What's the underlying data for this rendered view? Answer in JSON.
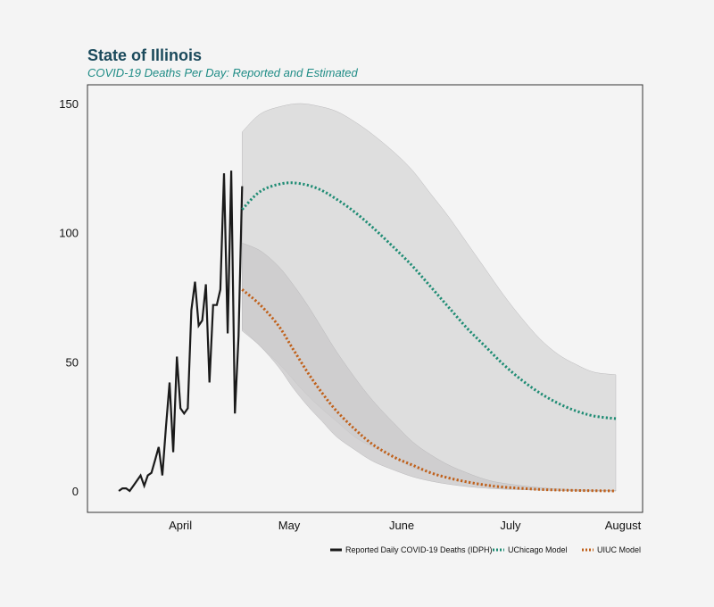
{
  "chart_data": {
    "type": "line",
    "title": "State of Illinois",
    "subtitle": "COVID-19 Deaths Per Day: Reported and Estimated",
    "xlabel": "",
    "ylabel": "",
    "ylim": [
      0,
      150
    ],
    "xlim": [
      "2020-03-15",
      "2020-08-01"
    ],
    "y_ticks": [
      0,
      50,
      100,
      150
    ],
    "x_ticks": [
      {
        "label": "April",
        "date": "2020-04-01"
      },
      {
        "label": "May",
        "date": "2020-05-01"
      },
      {
        "label": "June",
        "date": "2020-06-01"
      },
      {
        "label": "July",
        "date": "2020-07-01"
      },
      {
        "label": "August",
        "date": "2020-08-01"
      }
    ],
    "legend_position": "bottom-right",
    "series": [
      {
        "name": "Reported Daily COVID-19 Deaths (IDPH)",
        "style": "solid",
        "color": "#1a1a1a",
        "points": [
          [
            "2020-03-17",
            0
          ],
          [
            "2020-03-18",
            1
          ],
          [
            "2020-03-19",
            1
          ],
          [
            "2020-03-20",
            0
          ],
          [
            "2020-03-21",
            2
          ],
          [
            "2020-03-22",
            4
          ],
          [
            "2020-03-23",
            6
          ],
          [
            "2020-03-24",
            2
          ],
          [
            "2020-03-25",
            6
          ],
          [
            "2020-03-26",
            7
          ],
          [
            "2020-03-27",
            12
          ],
          [
            "2020-03-28",
            17
          ],
          [
            "2020-03-29",
            6
          ],
          [
            "2020-03-30",
            25
          ],
          [
            "2020-03-31",
            42
          ],
          [
            "2020-04-01",
            15
          ],
          [
            "2020-04-02",
            52
          ],
          [
            "2020-04-03",
            32
          ],
          [
            "2020-04-04",
            30
          ],
          [
            "2020-04-05",
            32
          ],
          [
            "2020-04-06",
            70
          ],
          [
            "2020-04-07",
            81
          ],
          [
            "2020-04-08",
            64
          ],
          [
            "2020-04-09",
            66
          ],
          [
            "2020-04-10",
            80
          ],
          [
            "2020-04-11",
            42
          ],
          [
            "2020-04-12",
            72
          ],
          [
            "2020-04-13",
            72
          ],
          [
            "2020-04-14",
            78
          ],
          [
            "2020-04-15",
            123
          ],
          [
            "2020-04-16",
            61
          ],
          [
            "2020-04-17",
            124
          ],
          [
            "2020-04-18",
            30
          ],
          [
            "2020-04-19",
            60
          ],
          [
            "2020-04-20",
            118
          ]
        ]
      },
      {
        "name": "UChicago Model",
        "style": "dotted",
        "color": "#1f8c74",
        "points": [
          [
            "2020-04-20",
            109
          ],
          [
            "2020-04-25",
            116
          ],
          [
            "2020-05-01",
            119
          ],
          [
            "2020-05-06",
            119
          ],
          [
            "2020-05-11",
            117
          ],
          [
            "2020-05-16",
            113
          ],
          [
            "2020-05-21",
            108
          ],
          [
            "2020-05-26",
            102
          ],
          [
            "2020-06-01",
            94
          ],
          [
            "2020-06-06",
            87
          ],
          [
            "2020-06-11",
            79
          ],
          [
            "2020-06-16",
            71
          ],
          [
            "2020-06-21",
            63
          ],
          [
            "2020-06-26",
            56
          ],
          [
            "2020-07-01",
            49
          ],
          [
            "2020-07-06",
            43
          ],
          [
            "2020-07-11",
            38
          ],
          [
            "2020-07-16",
            34
          ],
          [
            "2020-07-21",
            31
          ],
          [
            "2020-07-26",
            29
          ],
          [
            "2020-08-01",
            28
          ]
        ],
        "band": {
          "upper": [
            [
              "2020-04-20",
              139
            ],
            [
              "2020-04-25",
              146
            ],
            [
              "2020-05-01",
              149
            ],
            [
              "2020-05-06",
              150
            ],
            [
              "2020-05-11",
              149
            ],
            [
              "2020-05-16",
              147
            ],
            [
              "2020-05-21",
              143
            ],
            [
              "2020-05-26",
              138
            ],
            [
              "2020-06-01",
              131
            ],
            [
              "2020-06-06",
              124
            ],
            [
              "2020-06-11",
              115
            ],
            [
              "2020-06-16",
              106
            ],
            [
              "2020-06-21",
              96
            ],
            [
              "2020-06-26",
              86
            ],
            [
              "2020-07-01",
              76
            ],
            [
              "2020-07-06",
              67
            ],
            [
              "2020-07-11",
              59
            ],
            [
              "2020-07-16",
              53
            ],
            [
              "2020-07-21",
              49
            ],
            [
              "2020-07-26",
              46
            ],
            [
              "2020-08-01",
              45
            ]
          ],
          "lower": [
            [
              "2020-04-20",
              63
            ],
            [
              "2020-04-25",
              56
            ],
            [
              "2020-05-01",
              48
            ],
            [
              "2020-05-06",
              40
            ],
            [
              "2020-05-11",
              33
            ],
            [
              "2020-05-16",
              27
            ],
            [
              "2020-05-21",
              21
            ],
            [
              "2020-05-26",
              17
            ],
            [
              "2020-06-01",
              13
            ],
            [
              "2020-06-06",
              9
            ],
            [
              "2020-06-11",
              7
            ],
            [
              "2020-06-16",
              5
            ],
            [
              "2020-06-21",
              3
            ],
            [
              "2020-06-26",
              2
            ],
            [
              "2020-07-01",
              1
            ],
            [
              "2020-07-11",
              0.5
            ],
            [
              "2020-07-21",
              0
            ],
            [
              "2020-08-01",
              0
            ]
          ]
        }
      },
      {
        "name": "UIUC Model",
        "style": "dotted",
        "color": "#c0601a",
        "points": [
          [
            "2020-04-20",
            78
          ],
          [
            "2020-04-25",
            72
          ],
          [
            "2020-04-30",
            64
          ],
          [
            "2020-05-04",
            55
          ],
          [
            "2020-05-08",
            46
          ],
          [
            "2020-05-12",
            38
          ],
          [
            "2020-05-16",
            31
          ],
          [
            "2020-05-21",
            24
          ],
          [
            "2020-05-26",
            18
          ],
          [
            "2020-06-01",
            13
          ],
          [
            "2020-06-06",
            10
          ],
          [
            "2020-06-11",
            7
          ],
          [
            "2020-06-16",
            5
          ],
          [
            "2020-06-21",
            3.5
          ],
          [
            "2020-06-26",
            2.3
          ],
          [
            "2020-07-01",
            1.5
          ],
          [
            "2020-07-11",
            0.6
          ],
          [
            "2020-07-21",
            0.2
          ],
          [
            "2020-08-01",
            0
          ]
        ],
        "band": {
          "upper": [
            [
              "2020-04-20",
              96
            ],
            [
              "2020-04-25",
              93
            ],
            [
              "2020-04-30",
              87
            ],
            [
              "2020-05-04",
              80
            ],
            [
              "2020-05-08",
              72
            ],
            [
              "2020-05-12",
              63
            ],
            [
              "2020-05-16",
              54
            ],
            [
              "2020-05-21",
              44
            ],
            [
              "2020-05-26",
              35
            ],
            [
              "2020-06-01",
              26
            ],
            [
              "2020-06-06",
              19
            ],
            [
              "2020-06-11",
              14
            ],
            [
              "2020-06-16",
              10
            ],
            [
              "2020-06-21",
              7
            ],
            [
              "2020-06-26",
              4.5
            ],
            [
              "2020-07-01",
              3
            ],
            [
              "2020-07-11",
              1.3
            ],
            [
              "2020-07-21",
              0.5
            ],
            [
              "2020-08-01",
              0.2
            ]
          ],
          "lower": [
            [
              "2020-04-20",
              62
            ],
            [
              "2020-04-25",
              56
            ],
            [
              "2020-04-30",
              48
            ],
            [
              "2020-05-04",
              40
            ],
            [
              "2020-05-08",
              33
            ],
            [
              "2020-05-12",
              27
            ],
            [
              "2020-05-16",
              21
            ],
            [
              "2020-05-21",
              16
            ],
            [
              "2020-05-26",
              11.5
            ],
            [
              "2020-06-01",
              8
            ],
            [
              "2020-06-06",
              5.5
            ],
            [
              "2020-06-11",
              3.8
            ],
            [
              "2020-06-16",
              2.6
            ],
            [
              "2020-06-21",
              1.7
            ],
            [
              "2020-06-26",
              1.1
            ],
            [
              "2020-07-01",
              0.7
            ],
            [
              "2020-07-11",
              0.3
            ],
            [
              "2020-07-21",
              0.1
            ],
            [
              "2020-08-01",
              0
            ]
          ]
        }
      }
    ]
  },
  "colors": {
    "background": "#f4f4f4",
    "band_outer": "#dcdbdc",
    "band_inner": "#c9c8ca",
    "axis": "#333333"
  }
}
